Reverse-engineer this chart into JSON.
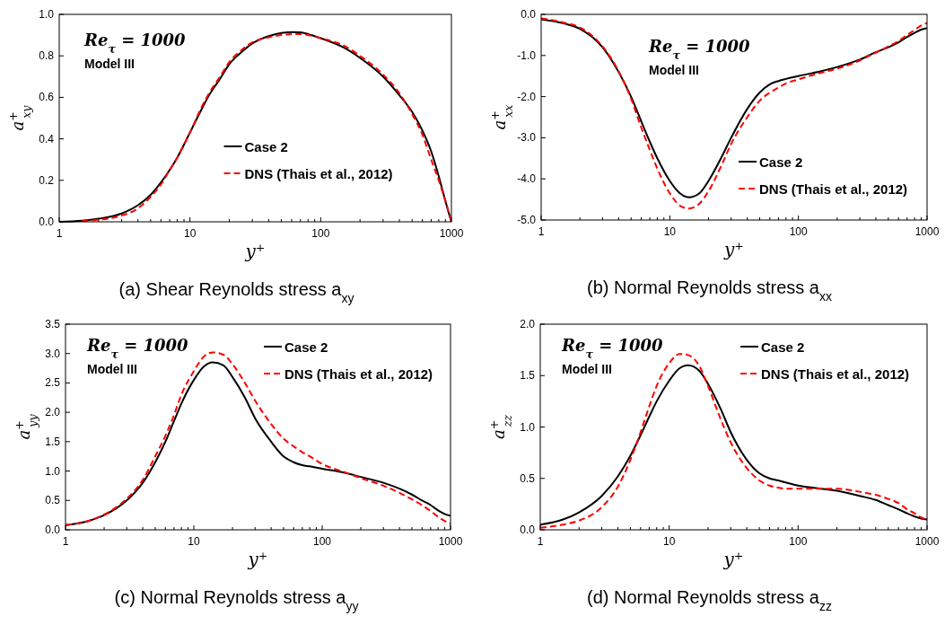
{
  "chart_data": [
    {
      "type": "line",
      "title": "(a) Shear Reynolds stress a$_{xy}$",
      "xlabel": "y⁺",
      "ylabel": "a$^{+}$$_{xy}$",
      "log": "x",
      "legend": "center right",
      "annotations": [
        "Re$_{τ}$ = 1000",
        "Model III"
      ],
      "x": [
        1,
        1.5,
        2,
        3,
        4,
        5,
        6,
        7,
        8,
        10,
        12,
        14,
        17,
        20,
        25,
        30,
        40,
        50,
        60,
        70,
        80,
        100,
        150,
        200,
        300,
        400,
        500,
        600,
        700,
        800,
        900,
        1000
      ],
      "xlim": [
        1,
        1000
      ],
      "xticks": [
        1,
        {
          "value": 2,
          "label": null
        },
        {
          "value": 3,
          "label": null
        },
        {
          "value": 4,
          "label": null
        },
        {
          "value": 5,
          "label": null
        },
        {
          "value": 6,
          "label": null
        },
        {
          "value": 7,
          "label": null
        },
        {
          "value": 8,
          "label": null
        },
        {
          "value": 9,
          "label": null
        },
        10,
        {
          "value": 20,
          "label": null
        },
        {
          "value": 30,
          "label": null
        },
        {
          "value": 40,
          "label": null
        },
        {
          "value": 50,
          "label": null
        },
        {
          "value": 60,
          "label": null
        },
        {
          "value": 70,
          "label": null
        },
        {
          "value": 80,
          "label": null
        },
        {
          "value": 90,
          "label": null
        },
        100,
        {
          "value": 200,
          "label": null
        },
        {
          "value": 300,
          "label": null
        },
        {
          "value": 400,
          "label": null
        },
        {
          "value": 500,
          "label": null
        },
        {
          "value": 600,
          "label": null
        },
        {
          "value": 700,
          "label": null
        },
        {
          "value": 800,
          "label": null
        },
        {
          "value": 900,
          "label": null
        },
        1000
      ],
      "ylim": [
        0,
        1
      ],
      "yticks": [
        {
          "value": 0,
          "label": "0.0"
        },
        {
          "value": 0.2,
          "label": "0.2"
        },
        {
          "value": 0.4,
          "label": "0.4"
        },
        {
          "value": 0.6,
          "label": "0.6"
        },
        {
          "value": 0.8,
          "label": "0.8"
        },
        {
          "value": 1,
          "label": "1.0"
        }
      ],
      "series": [
        {
          "name": "Case 2",
          "color": "#000000",
          "line_style": "solid",
          "values": [
            0,
            0.005,
            0.015,
            0.04,
            0.08,
            0.13,
            0.19,
            0.25,
            0.31,
            0.43,
            0.53,
            0.61,
            0.69,
            0.76,
            0.82,
            0.86,
            0.895,
            0.91,
            0.915,
            0.913,
            0.905,
            0.885,
            0.84,
            0.79,
            0.7,
            0.61,
            0.53,
            0.44,
            0.34,
            0.22,
            0.1,
            0
          ]
        },
        {
          "name": "DNS (Thais et al., 2012)",
          "color": "#ff0000",
          "line_style": "dashed",
          "values": [
            null,
            0.004,
            0.01,
            0.03,
            0.065,
            0.12,
            0.18,
            0.25,
            0.31,
            0.43,
            0.54,
            0.62,
            0.7,
            0.77,
            0.83,
            0.865,
            0.89,
            0.9,
            0.905,
            0.905,
            0.9,
            0.885,
            0.85,
            0.8,
            0.71,
            0.62,
            0.52,
            0.42,
            0.3,
            0.2,
            0.1,
            0
          ]
        }
      ]
    },
    {
      "type": "line",
      "title": "(b) Normal Reynolds stress a$_{xx}$",
      "xlabel": "y⁺",
      "ylabel": "a$^{+}$$_{xx}$",
      "log": "x",
      "legend": "bottom right",
      "annotations": [
        "Re$_{τ}$ = 1000",
        "Model III"
      ],
      "x": [
        1,
        1.5,
        2,
        3,
        4,
        5,
        6,
        7,
        8,
        10,
        12,
        14,
        17,
        20,
        25,
        30,
        40,
        50,
        60,
        70,
        80,
        100,
        150,
        200,
        300,
        400,
        500,
        600,
        700,
        800,
        900,
        1000
      ],
      "xlim": [
        1,
        1000
      ],
      "xticks": [
        1,
        {
          "value": 2,
          "label": null
        },
        {
          "value": 3,
          "label": null
        },
        {
          "value": 4,
          "label": null
        },
        {
          "value": 5,
          "label": null
        },
        {
          "value": 6,
          "label": null
        },
        {
          "value": 7,
          "label": null
        },
        {
          "value": 8,
          "label": null
        },
        {
          "value": 9,
          "label": null
        },
        10,
        {
          "value": 20,
          "label": null
        },
        {
          "value": 30,
          "label": null
        },
        {
          "value": 40,
          "label": null
        },
        {
          "value": 50,
          "label": null
        },
        {
          "value": 60,
          "label": null
        },
        {
          "value": 70,
          "label": null
        },
        {
          "value": 80,
          "label": null
        },
        {
          "value": 90,
          "label": null
        },
        100,
        {
          "value": 200,
          "label": null
        },
        {
          "value": 300,
          "label": null
        },
        {
          "value": 400,
          "label": null
        },
        {
          "value": 500,
          "label": null
        },
        {
          "value": 600,
          "label": null
        },
        {
          "value": 700,
          "label": null
        },
        {
          "value": 800,
          "label": null
        },
        {
          "value": 900,
          "label": null
        },
        1000
      ],
      "ylim": [
        -5,
        0
      ],
      "yticks": [
        {
          "value": -5,
          "label": "-5.0"
        },
        {
          "value": -4,
          "label": "-4.0"
        },
        {
          "value": -3,
          "label": "-3.0"
        },
        {
          "value": -2,
          "label": "-2.0"
        },
        {
          "value": -1,
          "label": "-1.0"
        },
        {
          "value": 0,
          "label": "0.0"
        }
      ],
      "series": [
        {
          "name": "Case 2",
          "color": "#000000",
          "line_style": "solid",
          "values": [
            -0.12,
            -0.22,
            -0.35,
            -0.8,
            -1.4,
            -2,
            -2.6,
            -3.1,
            -3.5,
            -4.05,
            -4.35,
            -4.45,
            -4.35,
            -4.05,
            -3.5,
            -3,
            -2.3,
            -1.9,
            -1.7,
            -1.62,
            -1.57,
            -1.5,
            -1.38,
            -1.28,
            -1.1,
            -0.92,
            -0.8,
            -0.68,
            -0.55,
            -0.45,
            -0.37,
            -0.33
          ]
        },
        {
          "name": "DNS (Thais et al., 2012)",
          "color": "#ff0000",
          "line_style": "dashed",
          "values": [
            -0.1,
            -0.2,
            -0.32,
            -0.78,
            -1.38,
            -2.05,
            -2.75,
            -3.3,
            -3.75,
            -4.35,
            -4.65,
            -4.72,
            -4.6,
            -4.3,
            -3.7,
            -3.15,
            -2.5,
            -2.1,
            -1.9,
            -1.78,
            -1.68,
            -1.58,
            -1.42,
            -1.32,
            -1.12,
            -0.93,
            -0.78,
            -0.65,
            -0.5,
            -0.38,
            -0.27,
            -0.21
          ]
        }
      ]
    },
    {
      "type": "line",
      "title": "(c) Normal Reynolds stress a$_{yy}$",
      "xlabel": "y⁺",
      "ylabel": "a$^{+}$$_{yy}$",
      "log": "x",
      "legend": "top right",
      "annotations": [
        "Re$_{τ}$ = 1000",
        "Model III"
      ],
      "x": [
        1,
        1.5,
        2,
        3,
        4,
        5,
        6,
        7,
        8,
        10,
        12,
        14,
        17,
        20,
        25,
        30,
        40,
        50,
        60,
        70,
        80,
        100,
        150,
        200,
        300,
        400,
        500,
        600,
        700,
        800,
        900,
        1000
      ],
      "xlim": [
        1,
        1000
      ],
      "xticks": [
        1,
        {
          "value": 2,
          "label": null
        },
        {
          "value": 3,
          "label": null
        },
        {
          "value": 4,
          "label": null
        },
        {
          "value": 5,
          "label": null
        },
        {
          "value": 6,
          "label": null
        },
        {
          "value": 7,
          "label": null
        },
        {
          "value": 8,
          "label": null
        },
        {
          "value": 9,
          "label": null
        },
        10,
        {
          "value": 20,
          "label": null
        },
        {
          "value": 30,
          "label": null
        },
        {
          "value": 40,
          "label": null
        },
        {
          "value": 50,
          "label": null
        },
        {
          "value": 60,
          "label": null
        },
        {
          "value": 70,
          "label": null
        },
        {
          "value": 80,
          "label": null
        },
        {
          "value": 90,
          "label": null
        },
        100,
        {
          "value": 200,
          "label": null
        },
        {
          "value": 300,
          "label": null
        },
        {
          "value": 400,
          "label": null
        },
        {
          "value": 500,
          "label": null
        },
        {
          "value": 600,
          "label": null
        },
        {
          "value": 700,
          "label": null
        },
        {
          "value": 800,
          "label": null
        },
        {
          "value": 900,
          "label": null
        },
        1000
      ],
      "ylim": [
        0,
        3.5
      ],
      "yticks": [
        {
          "value": 0,
          "label": "0.0"
        },
        0.5,
        {
          "value": 1,
          "label": "1.0"
        },
        1.5,
        {
          "value": 2,
          "label": "2.0"
        },
        2.5,
        {
          "value": 3,
          "label": "3.0"
        },
        3.5
      ],
      "series": [
        {
          "name": "Case 2",
          "color": "#000000",
          "line_style": "solid",
          "values": [
            0.08,
            0.15,
            0.25,
            0.5,
            0.8,
            1.15,
            1.5,
            1.85,
            2.15,
            2.55,
            2.78,
            2.85,
            2.8,
            2.6,
            2.25,
            1.9,
            1.5,
            1.25,
            1.15,
            1.1,
            1.08,
            1.04,
            0.97,
            0.9,
            0.8,
            0.7,
            0.6,
            0.5,
            0.42,
            0.33,
            0.27,
            0.24
          ]
        },
        {
          "name": "DNS (Thais et al., 2012)",
          "color": "#ff0000",
          "line_style": "dashed",
          "values": [
            0.08,
            0.15,
            0.26,
            0.53,
            0.85,
            1.25,
            1.6,
            1.95,
            2.3,
            2.7,
            2.95,
            3.02,
            2.98,
            2.82,
            2.5,
            2.2,
            1.8,
            1.55,
            1.42,
            1.32,
            1.25,
            1.12,
            0.98,
            0.88,
            0.75,
            0.63,
            0.52,
            0.42,
            0.32,
            0.22,
            0.15,
            0.1
          ]
        }
      ]
    },
    {
      "type": "line",
      "title": "(d) Normal Reynolds stress a$_{zz}$",
      "xlabel": "y⁺",
      "ylabel": "a$^{+}$$_{zz}$",
      "log": "x",
      "legend": "top right",
      "annotations": [
        "Re$_{τ}$ = 1000",
        "Model III"
      ],
      "x": [
        1,
        1.5,
        2,
        3,
        4,
        5,
        6,
        7,
        8,
        10,
        12,
        14,
        17,
        20,
        25,
        30,
        40,
        50,
        60,
        70,
        80,
        100,
        150,
        200,
        300,
        400,
        500,
        600,
        700,
        800,
        900,
        1000
      ],
      "xlim": [
        1,
        1000
      ],
      "xticks": [
        1,
        {
          "value": 2,
          "label": null
        },
        {
          "value": 3,
          "label": null
        },
        {
          "value": 4,
          "label": null
        },
        {
          "value": 5,
          "label": null
        },
        {
          "value": 6,
          "label": null
        },
        {
          "value": 7,
          "label": null
        },
        {
          "value": 8,
          "label": null
        },
        {
          "value": 9,
          "label": null
        },
        10,
        {
          "value": 20,
          "label": null
        },
        {
          "value": 30,
          "label": null
        },
        {
          "value": 40,
          "label": null
        },
        {
          "value": 50,
          "label": null
        },
        {
          "value": 60,
          "label": null
        },
        {
          "value": 70,
          "label": null
        },
        {
          "value": 80,
          "label": null
        },
        {
          "value": 90,
          "label": null
        },
        100,
        {
          "value": 200,
          "label": null
        },
        {
          "value": 300,
          "label": null
        },
        {
          "value": 400,
          "label": null
        },
        {
          "value": 500,
          "label": null
        },
        {
          "value": 600,
          "label": null
        },
        {
          "value": 700,
          "label": null
        },
        {
          "value": 800,
          "label": null
        },
        {
          "value": 900,
          "label": null
        },
        1000
      ],
      "ylim": [
        0,
        2
      ],
      "yticks": [
        {
          "value": 0,
          "label": "0.0"
        },
        0.5,
        {
          "value": 1,
          "label": "1.0"
        },
        1.5,
        {
          "value": 2,
          "label": "2.0"
        }
      ],
      "series": [
        {
          "name": "Case 2",
          "color": "#000000",
          "line_style": "solid",
          "values": [
            0.05,
            0.1,
            0.17,
            0.33,
            0.52,
            0.72,
            0.92,
            1.1,
            1.25,
            1.45,
            1.57,
            1.6,
            1.55,
            1.42,
            1.18,
            0.95,
            0.68,
            0.55,
            0.5,
            0.48,
            0.46,
            0.43,
            0.4,
            0.38,
            0.33,
            0.29,
            0.24,
            0.2,
            0.16,
            0.13,
            0.11,
            0.1
          ]
        },
        {
          "name": "DNS (Thais et al., 2012)",
          "color": "#ff0000",
          "line_style": "dashed",
          "values": [
            0.02,
            0.05,
            0.09,
            0.22,
            0.42,
            0.68,
            0.95,
            1.2,
            1.4,
            1.62,
            1.71,
            1.7,
            1.6,
            1.4,
            1.08,
            0.85,
            0.6,
            0.48,
            0.43,
            0.41,
            0.4,
            0.4,
            0.4,
            0.4,
            0.37,
            0.34,
            0.3,
            0.26,
            0.2,
            0.16,
            0.12,
            0.1
          ]
        }
      ]
    }
  ]
}
